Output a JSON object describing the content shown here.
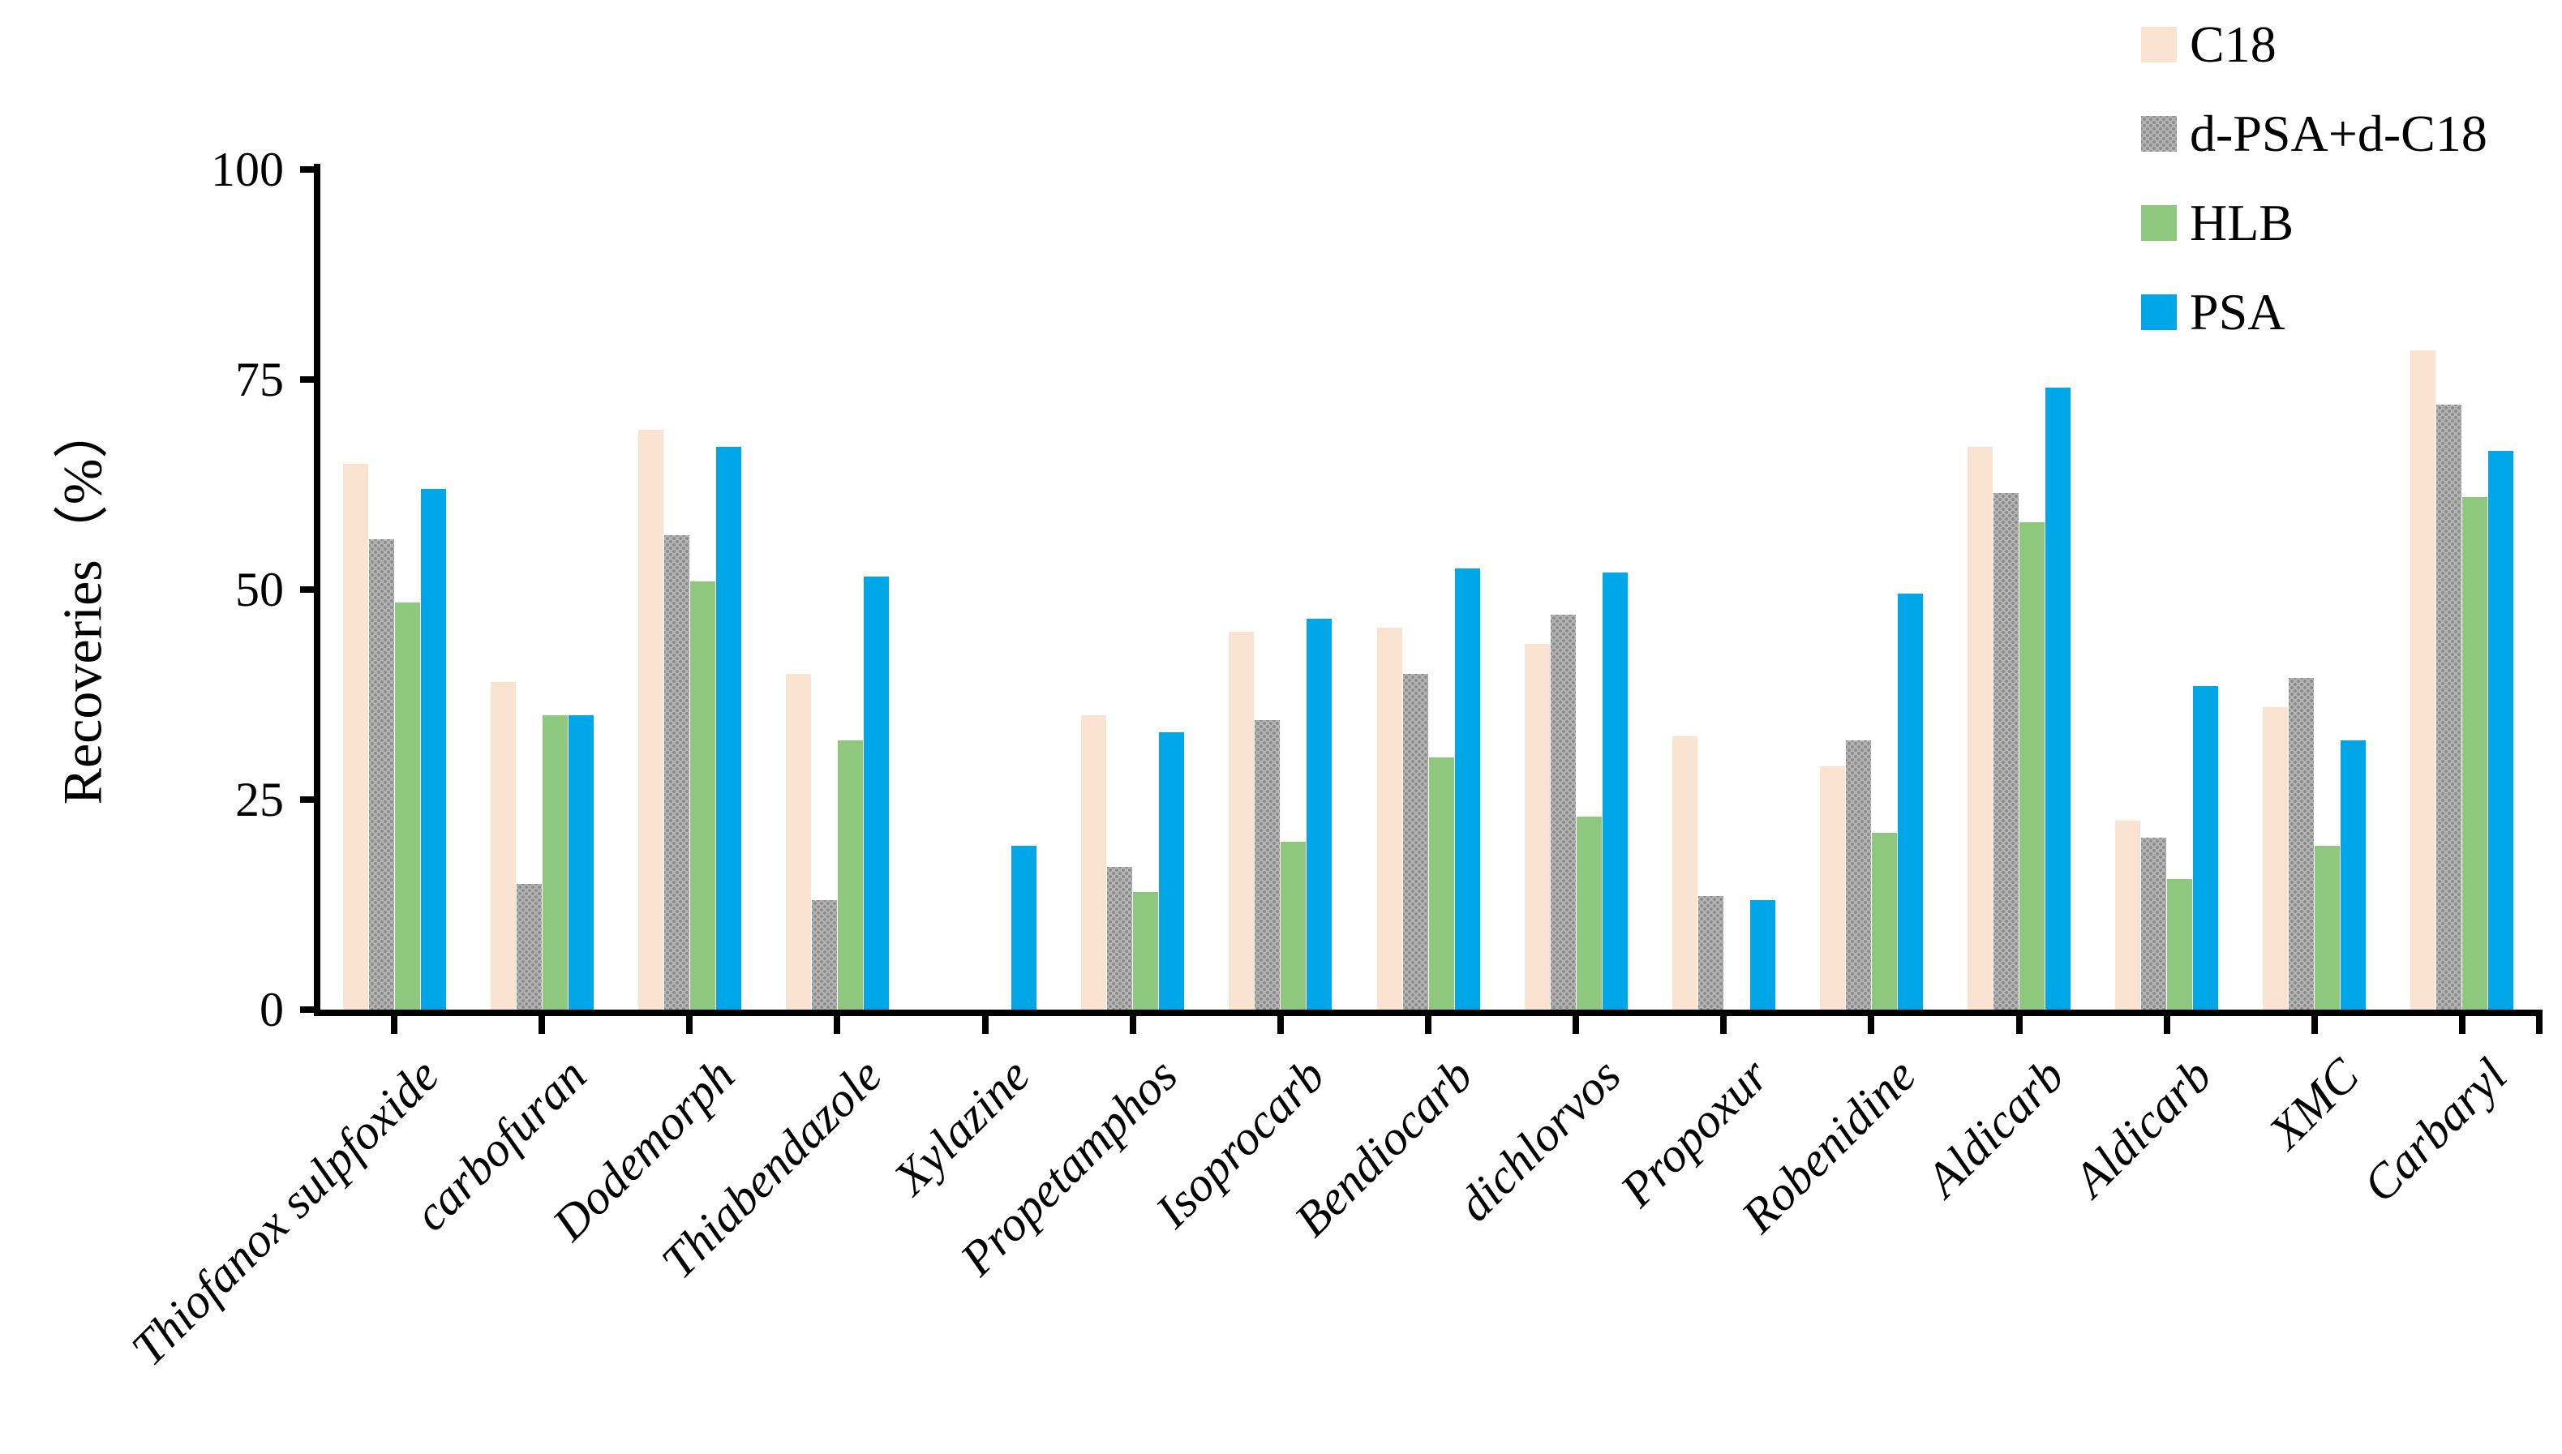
{
  "chart_data": {
    "type": "bar",
    "title": "",
    "xlabel": "",
    "ylabel": "Recoveries（%）",
    "ylim": [
      0,
      100
    ],
    "yticks": [
      0,
      25,
      50,
      75,
      100
    ],
    "grid": false,
    "legend_position": "top-right",
    "categories": [
      "Thiofanox sulpfoxide",
      "carbofuran",
      "Dodemorph",
      "Thiabendazole",
      "Xylazine",
      "Propetamphos",
      "Isoprocarb",
      "Bendiocarb",
      "dichlorvos",
      "Propoxur",
      "Robenidine",
      "Aldicarb",
      "Aldicarb",
      "XMC",
      "Carbaryl"
    ],
    "series": [
      {
        "name": "C18",
        "color": "#fbe3d1",
        "pattern": "solid",
        "values": [
          65,
          39,
          69,
          40,
          0,
          35,
          45,
          45.5,
          43.5,
          32.5,
          29,
          67,
          22.5,
          36,
          78.5
        ]
      },
      {
        "name": "d-PSA+d-C18",
        "color": "#a8a8a8",
        "pattern": "dots",
        "values": [
          56,
          15,
          56.5,
          13,
          0,
          17,
          34.5,
          40,
          47,
          13.5,
          32,
          61.5,
          20.5,
          39.5,
          72
        ]
      },
      {
        "name": "HLB",
        "color": "#8dc87e",
        "pattern": "solid",
        "values": [
          48.5,
          35,
          51,
          32,
          0,
          14,
          20,
          30,
          23,
          0,
          21,
          58,
          15.5,
          19.5,
          61
        ]
      },
      {
        "name": "PSA",
        "color": "#00a7e8",
        "pattern": "solid",
        "values": [
          62,
          35,
          67,
          51.5,
          19.5,
          33,
          46.5,
          52.5,
          52,
          13,
          49.5,
          74,
          38.5,
          32,
          66.5
        ]
      }
    ]
  }
}
